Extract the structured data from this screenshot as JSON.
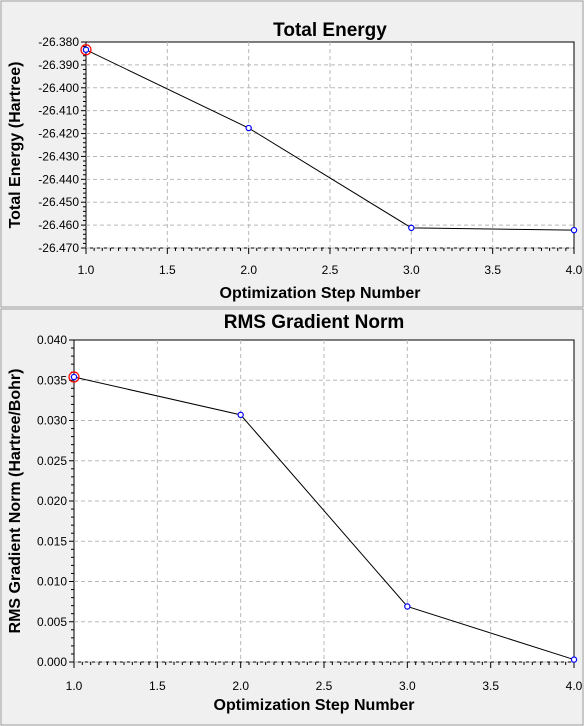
{
  "chart_data": [
    {
      "type": "line",
      "title": "Total Energy",
      "xlabel": "Optimization Step Number",
      "ylabel": "Total Energy (Hartree)",
      "x": [
        1.0,
        2.0,
        3.0,
        4.0
      ],
      "series": [
        {
          "values": [
            -26.3834,
            -26.4176,
            -26.4612,
            -26.4622
          ]
        }
      ],
      "xlim": [
        1.0,
        4.0
      ],
      "ylim": [
        -26.47,
        -26.38
      ],
      "xticks": [
        "1.0",
        "1.5",
        "2.0",
        "2.5",
        "3.0",
        "3.5",
        "4.0"
      ],
      "yticks": [
        "-26.380",
        "-26.390",
        "-26.400",
        "-26.410",
        "-26.420",
        "-26.430",
        "-26.440",
        "-26.450",
        "-26.460",
        "-26.470"
      ],
      "grid": true,
      "line_color": "#000000",
      "marker_color": "#0000ff",
      "highlight_color": "#ff0000",
      "highlight_index": 0
    },
    {
      "type": "line",
      "title": "RMS Gradient Norm",
      "xlabel": "Optimization Step Number",
      "ylabel": "RMS Gradient Norm (Hartree/Bohr)",
      "x": [
        1.0,
        2.0,
        3.0,
        4.0
      ],
      "series": [
        {
          "values": [
            0.0354,
            0.0307,
            0.0069,
            0.0003
          ]
        }
      ],
      "xlim": [
        1.0,
        4.0
      ],
      "ylim": [
        0.0,
        0.04
      ],
      "xticks": [
        "1.0",
        "1.5",
        "2.0",
        "2.5",
        "3.0",
        "3.5",
        "4.0"
      ],
      "yticks": [
        "0.040",
        "0.035",
        "0.030",
        "0.025",
        "0.020",
        "0.015",
        "0.010",
        "0.005",
        "0.000"
      ],
      "grid": true,
      "line_color": "#000000",
      "marker_color": "#0000ff",
      "highlight_color": "#ff0000",
      "highlight_index": 0
    }
  ]
}
